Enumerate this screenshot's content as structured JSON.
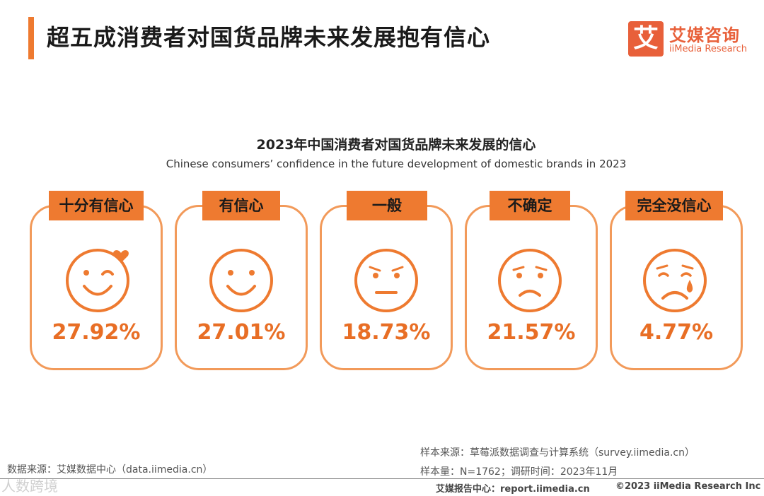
{
  "header": {
    "title": "超五成消费者对国货品牌未来发展抱有信心",
    "logo": {
      "mark": "艾",
      "cn": "艾媒咨询",
      "en": "iiMedia Research"
    }
  },
  "chart_data": {
    "type": "table",
    "title": "2023年中国消费者对国货品牌未来发展的信心",
    "subtitle": "Chinese consumers’ confidence in the future development of domestic brands in 2023",
    "categories": [
      "十分有信心",
      "有信心",
      "一般",
      "不确定",
      "完全没信心"
    ],
    "values": [
      27.92,
      27.01,
      18.73,
      21.57,
      4.77
    ],
    "value_labels": [
      "27.92%",
      "27.01%",
      "18.73%",
      "21.57%",
      "4.77%"
    ],
    "icons": [
      "wink-heart-face-icon",
      "smile-face-icon",
      "neutral-face-icon",
      "unsure-face-icon",
      "crying-face-icon"
    ],
    "colors": {
      "accent": "#ee7a30",
      "border": "#f29a5a",
      "value": "#e86e25"
    }
  },
  "footer": {
    "source_left": "数据来源：艾媒数据中心（data.iimedia.cn）",
    "sample_source": "样本来源：草莓派数据调查与计算系统（survey.iimedia.cn）",
    "sample_size": "样本量：N=1762；调研时间：2023年11月",
    "report": "艾媒报告中心：report.iimedia.cn",
    "copyright": "©2023  iiMedia Research  Inc",
    "watermark": "人数跨境"
  }
}
